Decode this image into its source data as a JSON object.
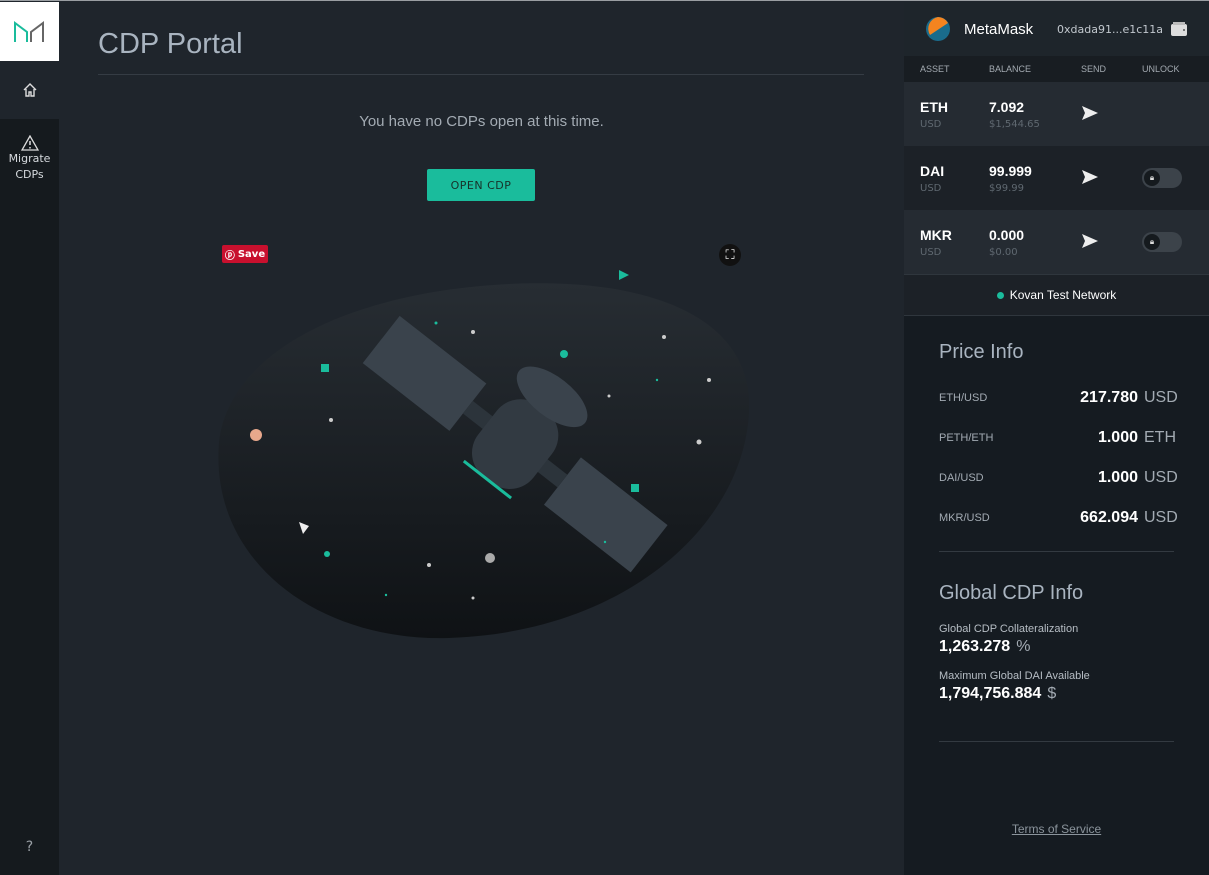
{
  "sidebar": {
    "items": [
      {
        "label": "Home",
        "icon": "home-icon"
      },
      {
        "label": "Migrate CDPs",
        "line1": "Migrate",
        "line2": "CDPs",
        "icon": "warning-icon"
      }
    ],
    "help": "?"
  },
  "main": {
    "title": "CDP Portal",
    "empty_message": "You have no CDPs open at this time.",
    "open_cdp_label": "OPEN CDP",
    "pin_save_label": "Save"
  },
  "wallet": {
    "name": "MetaMask",
    "address": "0xdada91...e1c11a",
    "columns": [
      "ASSET",
      "BALANCE",
      "SEND",
      "UNLOCK"
    ],
    "assets": [
      {
        "symbol": "ETH",
        "sub": "USD",
        "balance": "7.092",
        "usd": "$1,544.65",
        "unlock": false
      },
      {
        "symbol": "DAI",
        "sub": "USD",
        "balance": "99.999",
        "usd": "$99.99",
        "unlock": true,
        "locked": true
      },
      {
        "symbol": "MKR",
        "sub": "USD",
        "balance": "0.000",
        "usd": "$0.00",
        "unlock": true,
        "locked": true
      }
    ],
    "network": "Kovan Test Network",
    "network_color": "#1abc9c"
  },
  "price_info": {
    "title": "Price Info",
    "rows": [
      {
        "pair": "ETH/USD",
        "value": "217.780",
        "unit": "USD"
      },
      {
        "pair": "PETH/ETH",
        "value": "1.000",
        "unit": "ETH"
      },
      {
        "pair": "DAI/USD",
        "value": "1.000",
        "unit": "USD"
      },
      {
        "pair": "MKR/USD",
        "value": "662.094",
        "unit": "USD"
      }
    ]
  },
  "global_info": {
    "title": "Global CDP Info",
    "collateralization_label": "Global CDP Collateralization",
    "collateralization_value": "1,263.278",
    "collateralization_unit": "%",
    "max_dai_label": "Maximum Global DAI Available",
    "max_dai_value": "1,794,756.884",
    "max_dai_unit": "$"
  },
  "footer": {
    "terms": "Terms of Service"
  },
  "colors": {
    "accent": "#1abc9c",
    "background": "#1f252c"
  }
}
